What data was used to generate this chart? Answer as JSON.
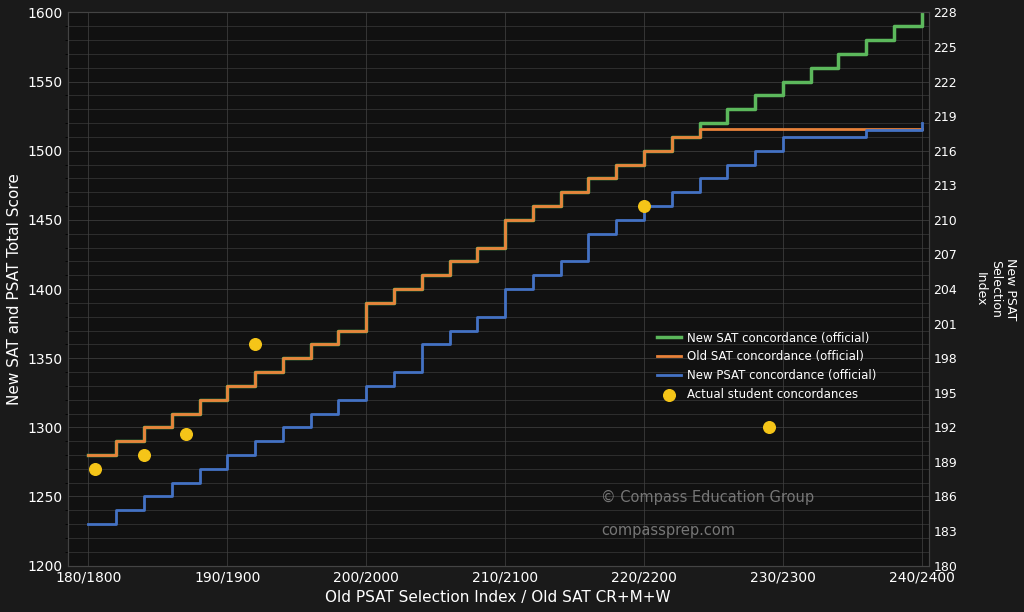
{
  "title": "",
  "xlabel": "Old PSAT Selection Index / Old SAT CR+M+W",
  "ylabel_left": "New SAT and PSAT Total Score",
  "ylabel_right": "New PSAT\nSelection\nIndex",
  "background_color": "#1a1a1a",
  "plot_bg_color": "#111111",
  "grid_color": "#444444",
  "text_color": "#ffffff",
  "x_labels": [
    "180/1800",
    "190/1900",
    "200/2000",
    "210/2100",
    "220/2200",
    "230/2300",
    "240/2400"
  ],
  "x_values": [
    180,
    190,
    200,
    210,
    220,
    230,
    240
  ],
  "green_line": {
    "label": "New SAT concordance (official)",
    "color": "#5cb85c",
    "x": [
      180,
      181,
      182,
      183,
      184,
      185,
      186,
      187,
      188,
      189,
      190,
      191,
      192,
      193,
      194,
      195,
      196,
      197,
      198,
      199,
      200,
      201,
      202,
      203,
      204,
      205,
      206,
      207,
      208,
      209,
      210,
      211,
      212,
      213,
      214,
      215,
      216,
      217,
      218,
      219,
      220,
      221,
      222,
      223,
      224,
      225,
      226,
      227,
      228,
      229,
      230,
      231,
      232,
      233,
      234,
      235,
      236,
      237,
      238,
      239,
      240
    ],
    "y": [
      1280,
      1280,
      1290,
      1290,
      1300,
      1300,
      1310,
      1310,
      1320,
      1320,
      1330,
      1330,
      1340,
      1340,
      1350,
      1350,
      1360,
      1360,
      1370,
      1370,
      1390,
      1390,
      1400,
      1400,
      1410,
      1410,
      1420,
      1420,
      1430,
      1430,
      1450,
      1450,
      1460,
      1460,
      1470,
      1470,
      1480,
      1480,
      1490,
      1490,
      1500,
      1500,
      1510,
      1510,
      1520,
      1520,
      1530,
      1530,
      1540,
      1540,
      1550,
      1550,
      1560,
      1560,
      1570,
      1570,
      1580,
      1580,
      1590,
      1590,
      1600
    ]
  },
  "orange_line": {
    "label": "Old SAT concordance (official)",
    "color": "#e8823a",
    "x": [
      180,
      181,
      182,
      183,
      184,
      185,
      186,
      187,
      188,
      189,
      190,
      191,
      192,
      193,
      194,
      195,
      196,
      197,
      198,
      199,
      200,
      201,
      202,
      203,
      204,
      205,
      206,
      207,
      208,
      209,
      210,
      211,
      212,
      213,
      214,
      215,
      216,
      217,
      218,
      219,
      220,
      221,
      222,
      223,
      224,
      225,
      226,
      227,
      228,
      229,
      230,
      231,
      232,
      233,
      234,
      235,
      236,
      237,
      238,
      239,
      240
    ],
    "y": [
      1280,
      1280,
      1290,
      1290,
      1300,
      1300,
      1310,
      1310,
      1320,
      1320,
      1330,
      1330,
      1340,
      1340,
      1350,
      1350,
      1360,
      1360,
      1370,
      1370,
      1390,
      1390,
      1400,
      1400,
      1410,
      1410,
      1420,
      1420,
      1430,
      1430,
      1450,
      1450,
      1460,
      1460,
      1470,
      1470,
      1480,
      1480,
      1490,
      1490,
      1500,
      1500,
      1510,
      1510,
      1516,
      1516,
      1516,
      1516,
      1516,
      1516,
      1516,
      1516,
      1516,
      1516,
      1516,
      1516,
      1516,
      1516,
      1516,
      1516,
      1516
    ]
  },
  "blue_line": {
    "label": "New PSAT concordance (official)",
    "color": "#4472c4",
    "x": [
      180,
      181,
      182,
      183,
      184,
      185,
      186,
      187,
      188,
      189,
      190,
      191,
      192,
      193,
      194,
      195,
      196,
      197,
      198,
      199,
      200,
      201,
      202,
      203,
      204,
      205,
      206,
      207,
      208,
      209,
      210,
      211,
      212,
      213,
      214,
      215,
      216,
      217,
      218,
      219,
      220,
      221,
      222,
      223,
      224,
      225,
      226,
      227,
      228,
      229,
      230,
      231,
      232,
      233,
      234,
      235,
      236,
      237,
      238,
      239,
      240
    ],
    "y": [
      1230,
      1230,
      1240,
      1240,
      1250,
      1250,
      1260,
      1260,
      1270,
      1270,
      1280,
      1280,
      1290,
      1290,
      1300,
      1300,
      1310,
      1310,
      1320,
      1320,
      1330,
      1330,
      1340,
      1340,
      1360,
      1360,
      1370,
      1370,
      1380,
      1380,
      1400,
      1400,
      1410,
      1410,
      1420,
      1420,
      1440,
      1440,
      1450,
      1450,
      1460,
      1460,
      1470,
      1470,
      1480,
      1480,
      1490,
      1490,
      1500,
      1500,
      1510,
      1510,
      1510,
      1510,
      1510,
      1510,
      1515,
      1515,
      1515,
      1515,
      1520
    ]
  },
  "dots": {
    "label": "Actual student concordances",
    "color": "#f5c518",
    "x": [
      180.5,
      184,
      187,
      192,
      220,
      229
    ],
    "y": [
      1270,
      1280,
      1295,
      1360,
      1460,
      1300
    ]
  },
  "ylim_left": [
    1200,
    1600
  ],
  "ylim_right": [
    180,
    228
  ],
  "yticks_left": [
    1200,
    1250,
    1300,
    1350,
    1400,
    1450,
    1500,
    1550,
    1600
  ],
  "yticks_right": [
    180,
    183,
    186,
    189,
    192,
    195,
    198,
    201,
    204,
    207,
    210,
    213,
    216,
    219,
    222,
    225,
    228
  ],
  "watermark_line1": "© Compass Education Group",
  "watermark_line2": "compassprep.com"
}
